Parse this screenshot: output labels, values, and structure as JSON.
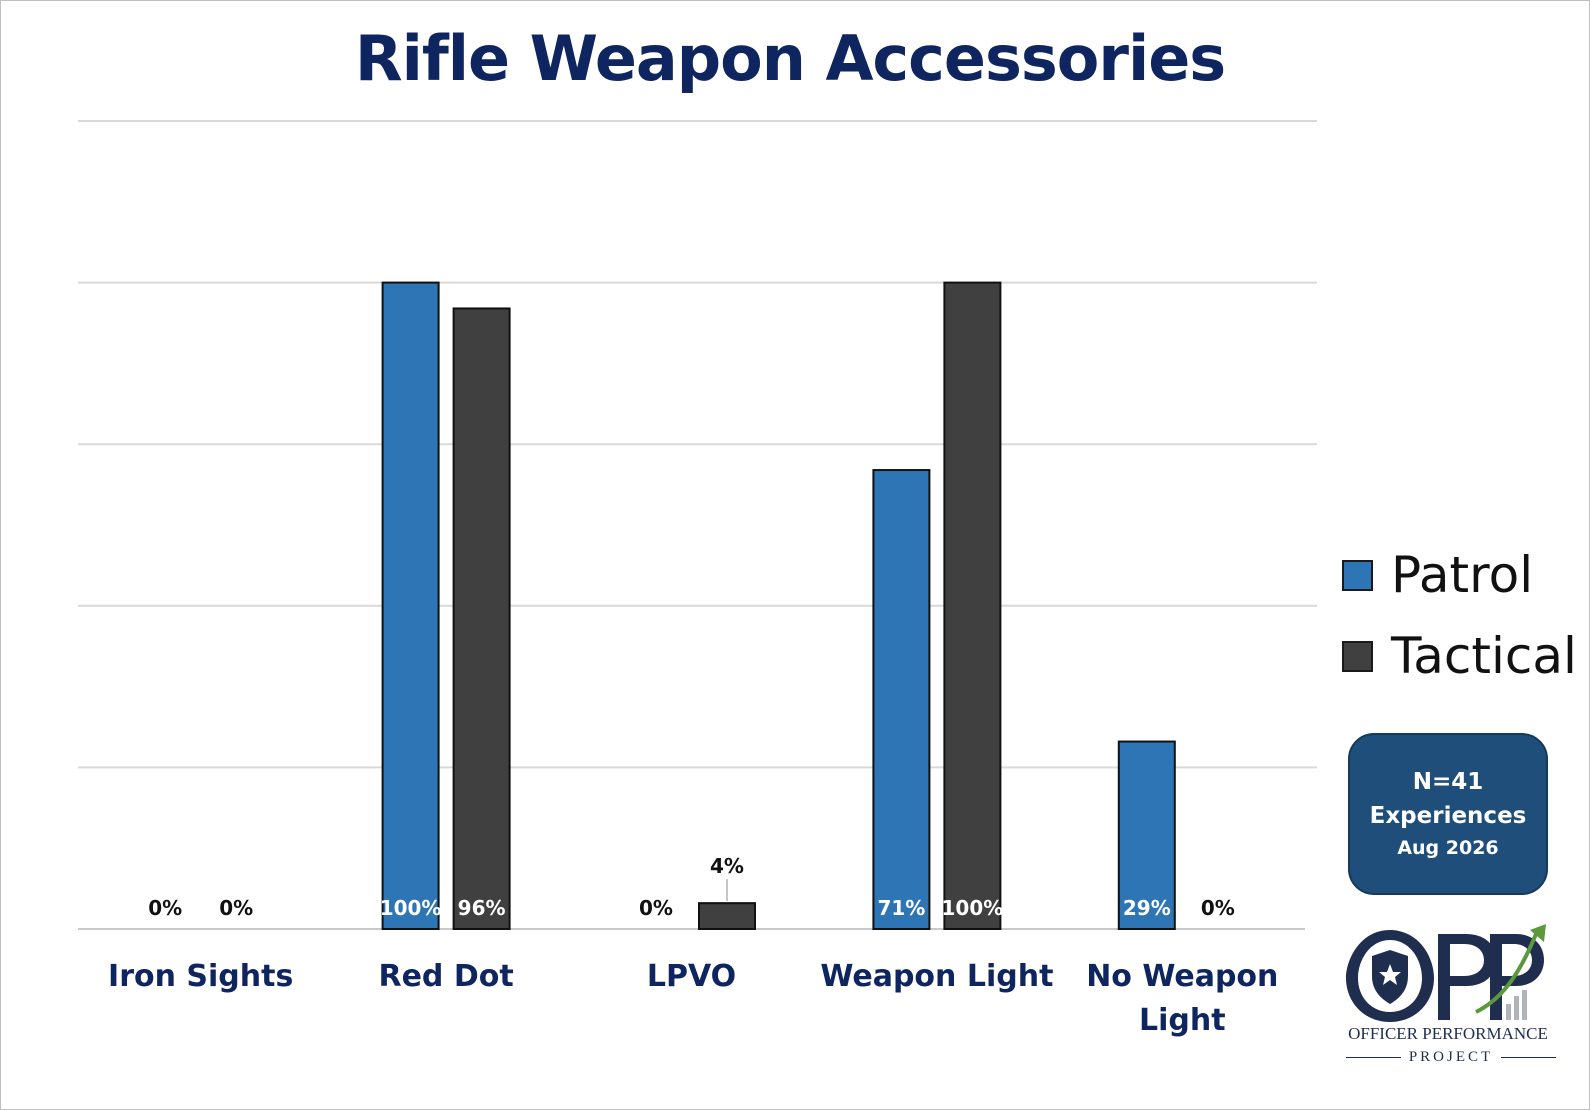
{
  "chart_data": {
    "type": "bar",
    "title": "Rifle Weapon Accessories",
    "categories": [
      "Iron Sights",
      "Red Dot",
      "LPVO",
      "Weapon Light",
      "No Weapon Light"
    ],
    "series": [
      {
        "name": "Patrol",
        "color": "#2e75b6",
        "values": [
          0,
          100,
          0,
          71,
          29
        ]
      },
      {
        "name": "Tactical",
        "color": "#404040",
        "values": [
          0,
          96,
          4,
          100,
          0
        ]
      }
    ],
    "data_labels": {
      "Patrol": [
        "0%",
        "100%",
        "0%",
        "71%",
        "29%"
      ],
      "Tactical": [
        "0%",
        "96%",
        "4%",
        "100%",
        "0%"
      ]
    },
    "ylim": [
      0,
      125
    ],
    "gridline_step": 25,
    "grid": true,
    "xlabel": "",
    "ylabel": "",
    "legend_position": "right"
  },
  "badge": {
    "line1": "N=41",
    "line2": "Experiences",
    "line3": "Aug 2026"
  },
  "logo": {
    "letters": "OPP",
    "org_name": "OFFICER PERFORMANCE",
    "org_sub": "PROJECT",
    "icon": "shield-star-icon"
  }
}
